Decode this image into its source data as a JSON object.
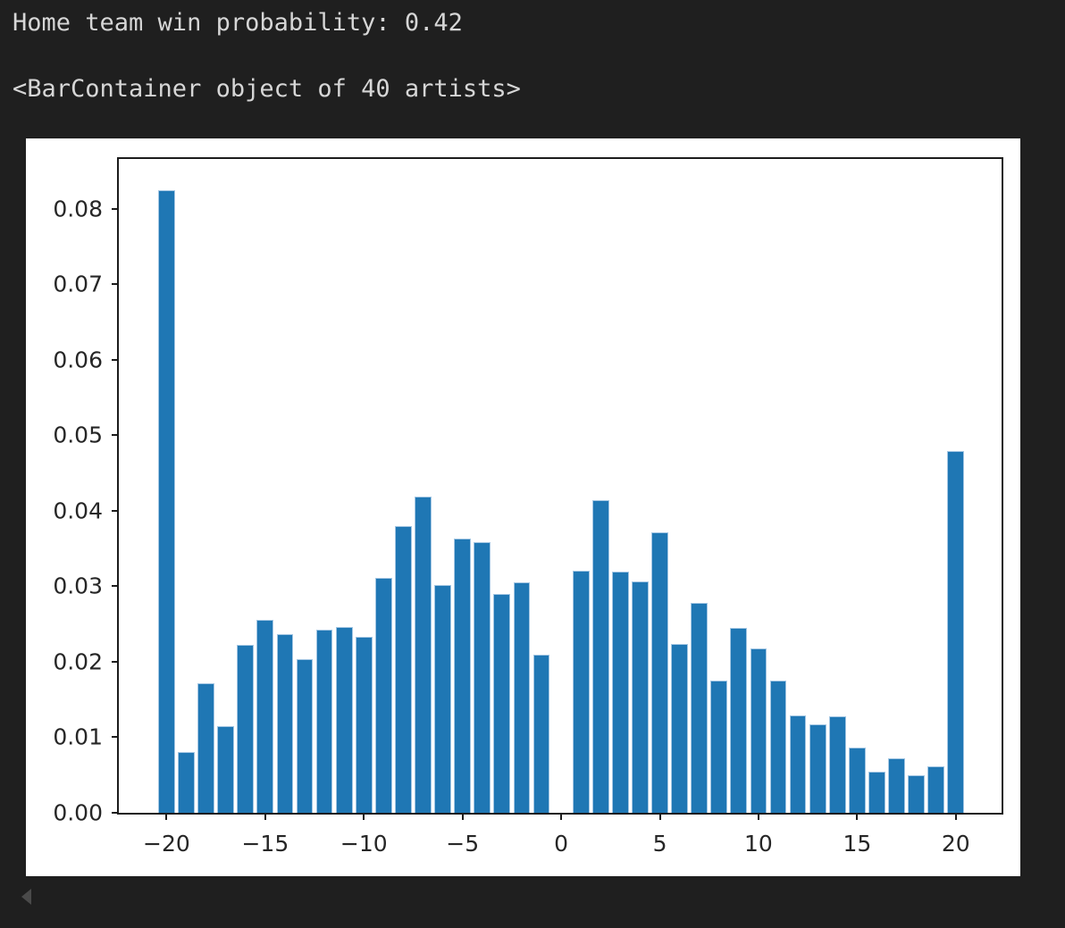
{
  "console": {
    "line1": "Home team win probability: 0.42",
    "line2": "<BarContainer object of 40 artists>"
  },
  "colors": {
    "page_bg": "#1f1f1f",
    "console_text": "#d6d6d6",
    "figure_bg": "#ffffff",
    "spine": "#1c1c1c",
    "tick_text": "#262626",
    "bar_fill": "#1f77b4",
    "bar_edge": "#a3c6e3",
    "collapse_arrow": "#4a4a4a"
  },
  "chart_data": {
    "type": "bar",
    "title": "",
    "xlabel": "",
    "ylabel": "",
    "grid": false,
    "legend": null,
    "x": [
      -20,
      -19,
      -18,
      -17,
      -16,
      -15,
      -14,
      -13,
      -12,
      -11,
      -10,
      -9,
      -8,
      -7,
      -6,
      -5,
      -4,
      -3,
      -2,
      -1,
      1,
      2,
      3,
      4,
      5,
      6,
      7,
      8,
      9,
      10,
      11,
      12,
      13,
      14,
      15,
      16,
      17,
      18,
      19,
      20
    ],
    "values": [
      0.0825,
      0.008,
      0.0172,
      0.0115,
      0.0222,
      0.0255,
      0.0237,
      0.0203,
      0.0242,
      0.0246,
      0.0233,
      0.0311,
      0.038,
      0.0419,
      0.0302,
      0.0363,
      0.0358,
      0.029,
      0.0305,
      0.021,
      0.0321,
      0.0414,
      0.032,
      0.0307,
      0.0372,
      0.0224,
      0.0278,
      0.0175,
      0.0245,
      0.0218,
      0.0175,
      0.0129,
      0.0117,
      0.0128,
      0.0086,
      0.0054,
      0.0072,
      0.005,
      0.0061,
      0.0479
    ],
    "bar_width_units": 0.85,
    "xlim": [
      -22.42,
      22.32
    ],
    "ylim": [
      0,
      0.0866
    ],
    "x_ticks": [
      {
        "v": -20,
        "label": "−20"
      },
      {
        "v": -15,
        "label": "−15"
      },
      {
        "v": -10,
        "label": "−10"
      },
      {
        "v": -5,
        "label": "−5"
      },
      {
        "v": 0,
        "label": "0"
      },
      {
        "v": 5,
        "label": "5"
      },
      {
        "v": 10,
        "label": "10"
      },
      {
        "v": 15,
        "label": "15"
      },
      {
        "v": 20,
        "label": "20"
      }
    ],
    "y_ticks": [
      {
        "v": 0.0,
        "label": "0.00"
      },
      {
        "v": 0.01,
        "label": "0.01"
      },
      {
        "v": 0.02,
        "label": "0.02"
      },
      {
        "v": 0.03,
        "label": "0.03"
      },
      {
        "v": 0.04,
        "label": "0.04"
      },
      {
        "v": 0.05,
        "label": "0.05"
      },
      {
        "v": 0.06,
        "label": "0.06"
      },
      {
        "v": 0.07,
        "label": "0.07"
      },
      {
        "v": 0.08,
        "label": "0.08"
      }
    ]
  }
}
